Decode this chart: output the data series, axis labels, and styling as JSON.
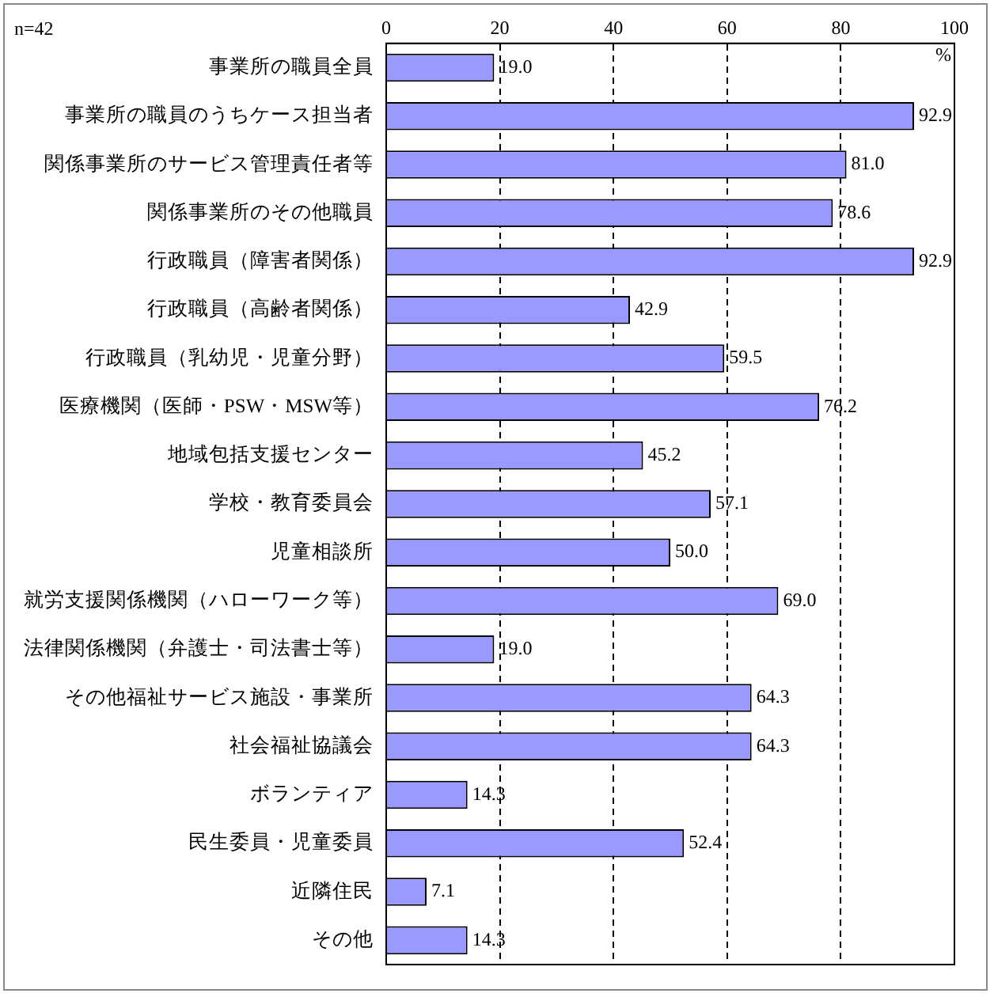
{
  "chart_data": {
    "type": "bar",
    "orientation": "horizontal",
    "xlabel": "%",
    "annotations": [
      "n=42"
    ],
    "categories": [
      "事業所の職員全員",
      "事業所の職員のうちケース担当者",
      "関係事業所のサービス管理責任者等",
      "関係事業所のその他職員",
      "行政職員（障害者関係）",
      "行政職員（高齢者関係）",
      "行政職員（乳幼児・児童分野）",
      "医療機関（医師・PSW・MSW等）",
      "地域包括支援センター",
      "学校・教育委員会",
      "児童相談所",
      "就労支援関係機関（ハローワーク等）",
      "法律関係機関（弁護士・司法書士等）",
      "その他福祉サービス施設・事業所",
      "社会福祉協議会",
      "ボランティア",
      "民生委員・児童委員",
      "近隣住民",
      "その他"
    ],
    "values": [
      19.0,
      92.9,
      81.0,
      78.6,
      92.9,
      42.9,
      59.5,
      76.2,
      45.2,
      57.1,
      50.0,
      69.0,
      19.0,
      64.3,
      64.3,
      14.3,
      52.4,
      7.1,
      14.3
    ],
    "value_labels": [
      "19.0",
      "92.9",
      "81.0",
      "78.6",
      "92.9",
      "42.9",
      "59.5",
      "76.2",
      "45.2",
      "57.1",
      "50.0",
      "69.0",
      "19.0",
      "64.3",
      "64.3",
      "14.3",
      "52.4",
      "7.1",
      "14.3"
    ],
    "color": "#9999ff",
    "xlim": [
      0,
      100
    ],
    "xticks": [
      0,
      20,
      40,
      60,
      80,
      100
    ],
    "grid": "x",
    "legend": false
  }
}
